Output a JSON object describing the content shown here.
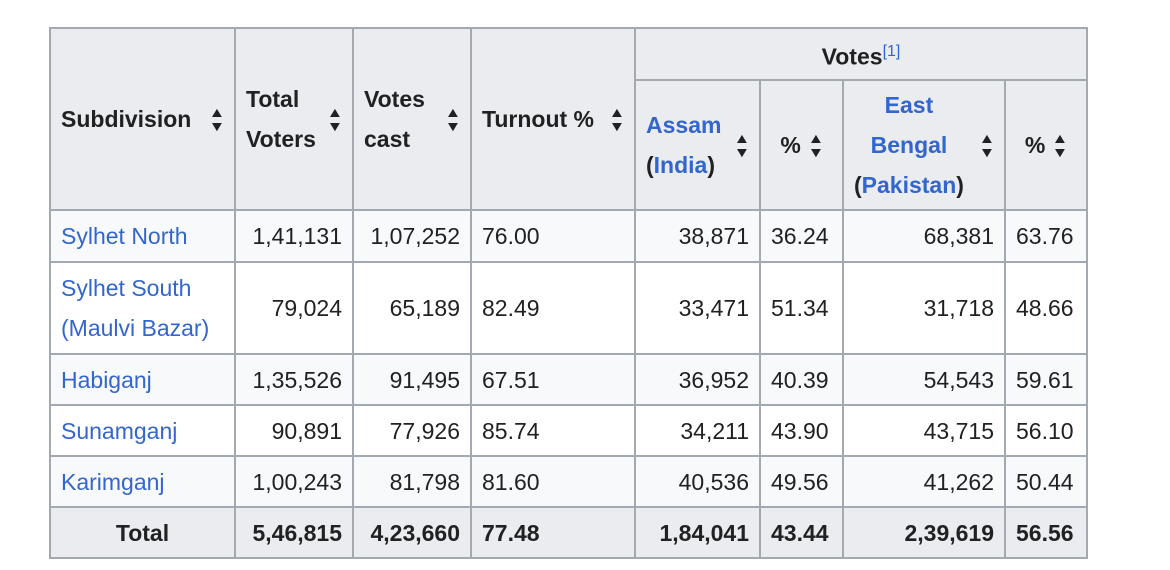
{
  "headers": {
    "subdivision": "Subdivision",
    "total_voters": [
      "Total",
      "Voters"
    ],
    "votes_cast": [
      "Votes",
      "cast"
    ],
    "turnout": "Turnout %",
    "votes": "Votes",
    "votes_ref": "[1]",
    "assam": "Assam",
    "assam_country": "India",
    "pct": "%",
    "east_bengal": [
      "East",
      "Bengal"
    ],
    "east_bengal_country": "Pakistan"
  },
  "rows": [
    {
      "name": [
        "Sylhet North"
      ],
      "total_voters": "1,41,131",
      "votes_cast": "1,07,252",
      "turnout": "76.00",
      "assam": "38,871",
      "assam_pct": "36.24",
      "eb": "68,381",
      "eb_pct": "63.76"
    },
    {
      "name": [
        "Sylhet South",
        "(Maulvi Bazar)"
      ],
      "total_voters": "79,024",
      "votes_cast": "65,189",
      "turnout": "82.49",
      "assam": "33,471",
      "assam_pct": "51.34",
      "eb": "31,718",
      "eb_pct": "48.66"
    },
    {
      "name": [
        "Habiganj"
      ],
      "total_voters": "1,35,526",
      "votes_cast": "91,495",
      "turnout": "67.51",
      "assam": "36,952",
      "assam_pct": "40.39",
      "eb": "54,543",
      "eb_pct": "59.61"
    },
    {
      "name": [
        "Sunamganj"
      ],
      "total_voters": "90,891",
      "votes_cast": "77,926",
      "turnout": "85.74",
      "assam": "34,211",
      "assam_pct": "43.90",
      "eb": "43,715",
      "eb_pct": "56.10"
    },
    {
      "name": [
        "Karimganj"
      ],
      "total_voters": "1,00,243",
      "votes_cast": "81,798",
      "turnout": "81.60",
      "assam": "40,536",
      "assam_pct": "49.56",
      "eb": "41,262",
      "eb_pct": "50.44"
    }
  ],
  "total": {
    "label": "Total",
    "total_voters": "5,46,815",
    "votes_cast": "4,23,660",
    "turnout": "77.48",
    "assam": "1,84,041",
    "assam_pct": "43.44",
    "eb": "2,39,619",
    "eb_pct": "56.56"
  },
  "colors": {
    "link": "#3366cc",
    "header_bg": "#eaecf0",
    "row_bg": "#f8f9fa",
    "border": "#a2a9b1"
  }
}
